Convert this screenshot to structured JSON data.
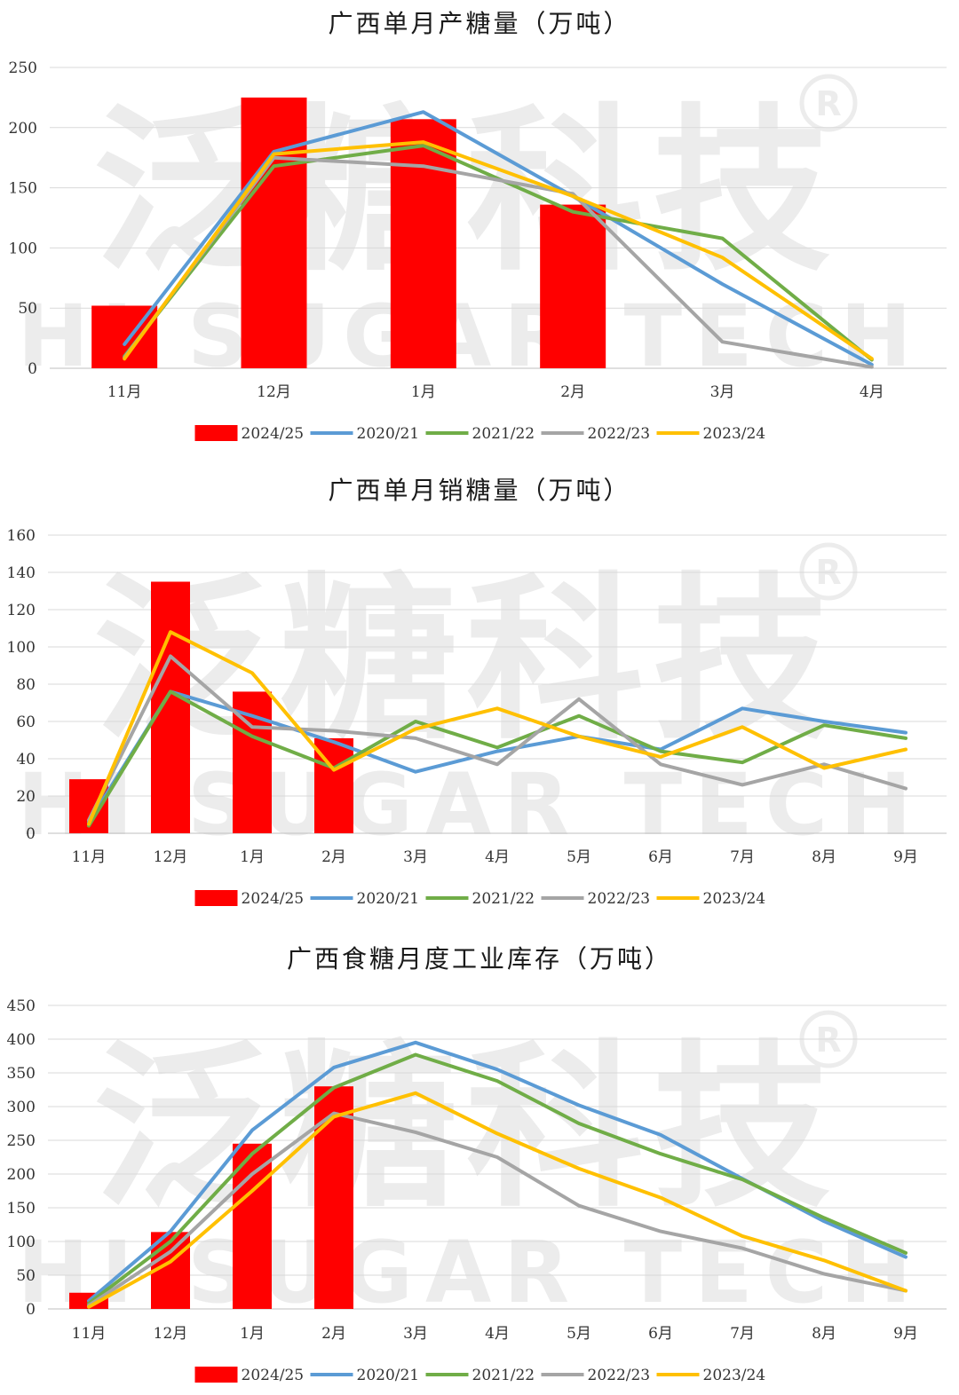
{
  "colors": {
    "2024/25": "#ff0000",
    "2020/21": "#5b9bd5",
    "2021/22": "#70ad47",
    "2022/23": "#a5a5a5",
    "2023/24": "#ffc000",
    "grid": "#d9d9d9",
    "axis": "#bfbfbf"
  },
  "watermark": {
    "cn": "泛糖科技",
    "en": "HI SUGAR TECH",
    "reg": "®"
  },
  "chart_data": [
    {
      "type": "bar+line",
      "title": "广西单月产糖量（万吨）",
      "categories": [
        "11月",
        "12月",
        "1月",
        "2月",
        "3月",
        "4月"
      ],
      "ylim": [
        0,
        250
      ],
      "yticks": [
        0,
        50,
        100,
        150,
        200,
        250
      ],
      "grid": true,
      "legend": "bottom",
      "bar_series": {
        "name": "2024/25",
        "values": [
          52,
          225,
          207,
          136,
          null,
          null
        ]
      },
      "line_series": [
        {
          "name": "2020/21",
          "values": [
            20,
            180,
            213,
            143,
            70,
            3
          ]
        },
        {
          "name": "2021/22",
          "values": [
            10,
            168,
            185,
            130,
            108,
            7
          ]
        },
        {
          "name": "2022/23",
          "values": [
            9,
            175,
            168,
            145,
            22,
            1
          ]
        },
        {
          "name": "2023/24",
          "values": [
            8,
            178,
            188,
            143,
            92,
            8
          ]
        }
      ]
    },
    {
      "type": "bar+line",
      "title": "广西单月销糖量（万吨）",
      "categories": [
        "11月",
        "12月",
        "1月",
        "2月",
        "3月",
        "4月",
        "5月",
        "6月",
        "7月",
        "8月",
        "9月"
      ],
      "ylim": [
        0,
        160
      ],
      "yticks": [
        0,
        20,
        40,
        60,
        80,
        100,
        120,
        140,
        160
      ],
      "grid": true,
      "legend": "bottom",
      "bar_series": {
        "name": "2024/25",
        "values": [
          29,
          135,
          76,
          51,
          null,
          null,
          null,
          null,
          null,
          null,
          null
        ]
      },
      "line_series": [
        {
          "name": "2020/21",
          "values": [
            6,
            76,
            63,
            49,
            33,
            44,
            52,
            45,
            67,
            60,
            54
          ]
        },
        {
          "name": "2021/22",
          "values": [
            4,
            76,
            52,
            35,
            60,
            46,
            63,
            44,
            38,
            58,
            51
          ]
        },
        {
          "name": "2022/23",
          "values": [
            7,
            95,
            57,
            55,
            51,
            37,
            72,
            37,
            26,
            37,
            24
          ]
        },
        {
          "name": "2023/24",
          "values": [
            5,
            108,
            86,
            34,
            56,
            67,
            52,
            41,
            57,
            35,
            45
          ]
        }
      ]
    },
    {
      "type": "bar+line",
      "title": "广西食糖月度工业库存（万吨）",
      "categories": [
        "11月",
        "12月",
        "1月",
        "2月",
        "3月",
        "4月",
        "5月",
        "6月",
        "7月",
        "8月",
        "9月"
      ],
      "ylim": [
        0,
        450
      ],
      "yticks": [
        0,
        50,
        100,
        150,
        200,
        250,
        300,
        350,
        400,
        450
      ],
      "grid": true,
      "legend": "bottom",
      "bar_series": {
        "name": "2024/25",
        "values": [
          24,
          114,
          245,
          330,
          null,
          null,
          null,
          null,
          null,
          null,
          null
        ]
      },
      "line_series": [
        {
          "name": "2020/21",
          "values": [
            12,
            115,
            265,
            358,
            395,
            355,
            302,
            258,
            193,
            130,
            77
          ]
        },
        {
          "name": "2021/22",
          "values": [
            8,
            100,
            230,
            328,
            377,
            338,
            275,
            230,
            192,
            135,
            83
          ]
        },
        {
          "name": "2022/23",
          "values": [
            5,
            85,
            200,
            290,
            262,
            225,
            153,
            115,
            90,
            52,
            27
          ]
        },
        {
          "name": "2023/24",
          "values": [
            3,
            70,
            175,
            285,
            320,
            260,
            208,
            165,
            108,
            72,
            27
          ]
        }
      ]
    }
  ]
}
